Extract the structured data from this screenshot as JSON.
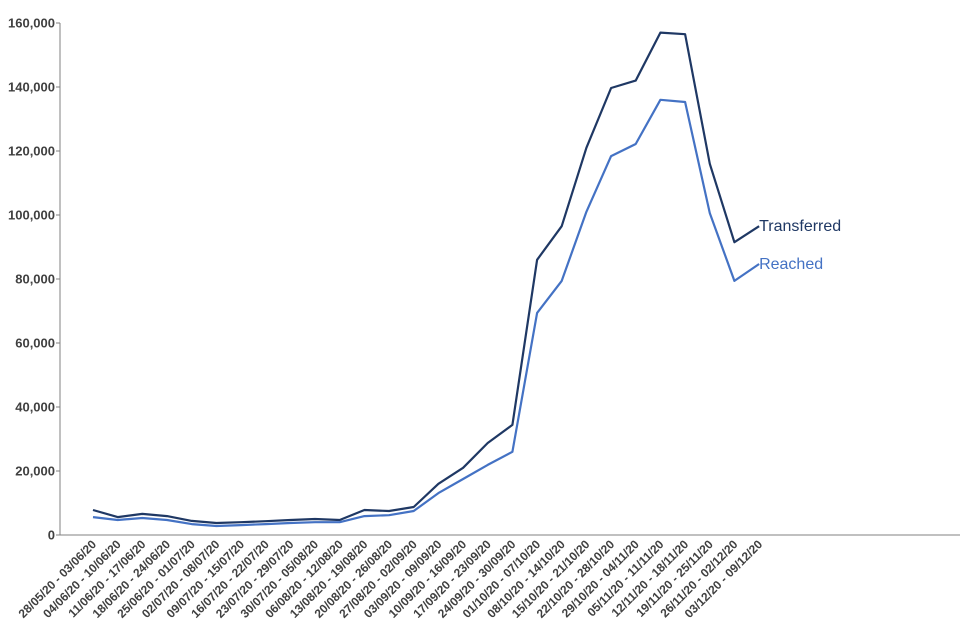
{
  "chart_data": {
    "type": "line",
    "title": "",
    "xlabel": "",
    "ylabel": "",
    "ylim": [
      0,
      160000
    ],
    "yticks": [
      "0",
      "20,000",
      "40,000",
      "60,000",
      "80,000",
      "100,000",
      "120,000",
      "140,000",
      "160,000"
    ],
    "grid": false,
    "categories": [
      "28/05/20 - 03/06/20",
      "04/06/20 - 10/06/20",
      "11/06/20 - 17/06/20",
      "18/06/20 - 24/06/20",
      "25/06/20 - 01/07/20",
      "02/07/20 - 08/07/20",
      "09/07/20 - 15/07/20",
      "16/07/20 - 22/07/20",
      "23/07/20 - 29/07/20",
      "30/07/20 - 05/08/20",
      "06/08/20 - 12/08/20",
      "13/08/20 - 19/08/20",
      "20/08/20 - 26/08/20",
      "27/08/20 - 02/09/20",
      "03/09/20 - 09/09/20",
      "10/09/20 - 16/09/20",
      "17/09/20 - 23/09/20",
      "24/09/20 - 30/09/20",
      "01/10/20 - 07/10/20",
      "08/10/20 - 14/10/20",
      "15/10/20 - 21/10/20",
      "22/10/20 - 28/10/20",
      "29/10/20 - 04/11/20",
      "05/11/20 - 11/11/20",
      "12/11/20 - 18/11/20",
      "19/11/20 - 25/11/20",
      "26/11/20 - 02/12/20",
      "03/12/20 - 09/12/20"
    ],
    "series": [
      {
        "name": "Transferred",
        "color": "#1f3864",
        "values": [
          7800,
          5600,
          6600,
          5900,
          4400,
          3750,
          4000,
          4300,
          4700,
          5000,
          4700,
          7800,
          7500,
          8750,
          16000,
          21000,
          28750,
          34400,
          86000,
          96500,
          121000,
          139700,
          142000,
          157000,
          156500,
          116000,
          91500,
          96500
        ]
      },
      {
        "name": "Reached",
        "color": "#4472c4",
        "values": [
          5600,
          4700,
          5300,
          4700,
          3400,
          2800,
          3100,
          3400,
          3750,
          4000,
          4000,
          5900,
          6200,
          7500,
          13100,
          17500,
          21900,
          26000,
          69400,
          79400,
          101000,
          118400,
          122200,
          136000,
          135300,
          100600,
          79400,
          84700
        ]
      }
    ],
    "legend": "inline-end-labels"
  }
}
